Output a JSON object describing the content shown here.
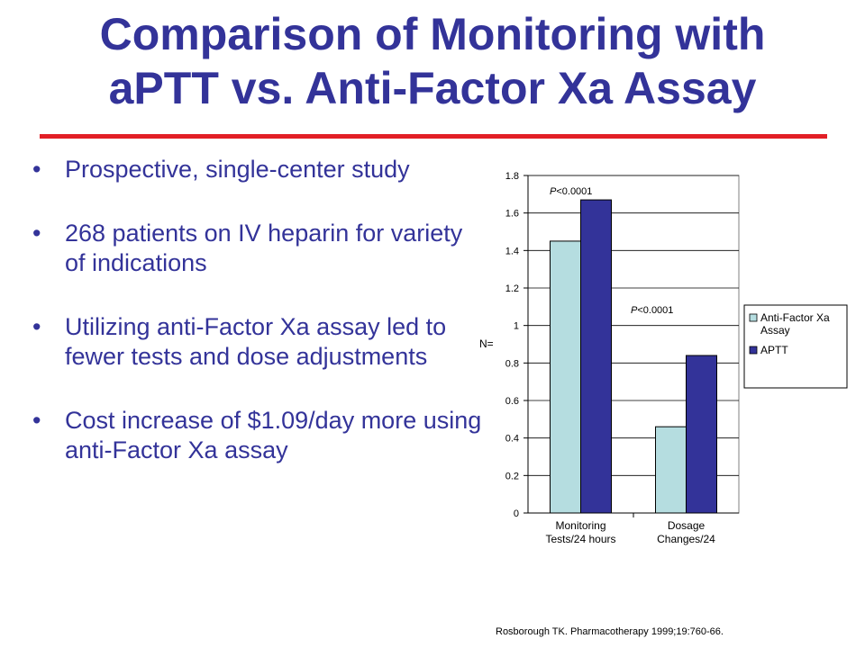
{
  "title_line1": "Comparison of Monitoring with",
  "title_line2": "aPTT vs. Anti-Factor Xa Assay",
  "bullets": [
    "Prospective, single-center study",
    "268 patients on IV heparin for variety of indications",
    "Utilizing anti-Factor Xa assay led to fewer tests and dose adjustments",
    "Cost increase of $1.09/day more using anti-Factor Xa assay"
  ],
  "citation": "Rosborough TK. Pharmacotherapy 1999;19:760-66.",
  "colors": {
    "title": "#333399",
    "rule": "#e21f26",
    "antiXa": "#b5dde0",
    "aptt": "#333399"
  },
  "chart_data": {
    "type": "bar",
    "categories": [
      [
        "Monitoring",
        "Tests/24 hours"
      ],
      [
        "Dosage",
        "Changes/24"
      ]
    ],
    "series": [
      {
        "name": "Anti-Factor Xa Assay",
        "legend_lines": [
          "Anti-Factor Xa",
          "Assay"
        ],
        "values": [
          1.45,
          0.46
        ]
      },
      {
        "name": "APTT",
        "legend_lines": [
          "APTT"
        ],
        "values": [
          1.67,
          0.84
        ]
      }
    ],
    "ylabel": "N=",
    "ylim": [
      0,
      1.8
    ],
    "yticks": [
      0,
      0.2,
      0.4,
      0.6,
      0.8,
      1,
      1.2,
      1.4,
      1.6,
      1.8
    ],
    "ytick_labels": [
      "0",
      "0.2",
      "0.4",
      "0.6",
      "0.8",
      "1",
      "1.2",
      "1.4",
      "1.6",
      "1.8"
    ],
    "annotations": [
      {
        "italic": "P",
        "text": "<0.0001",
        "category": 0
      },
      {
        "italic": "P",
        "text": "<0.0001",
        "category": 1
      }
    ],
    "legend_position": "right",
    "grid": true
  }
}
